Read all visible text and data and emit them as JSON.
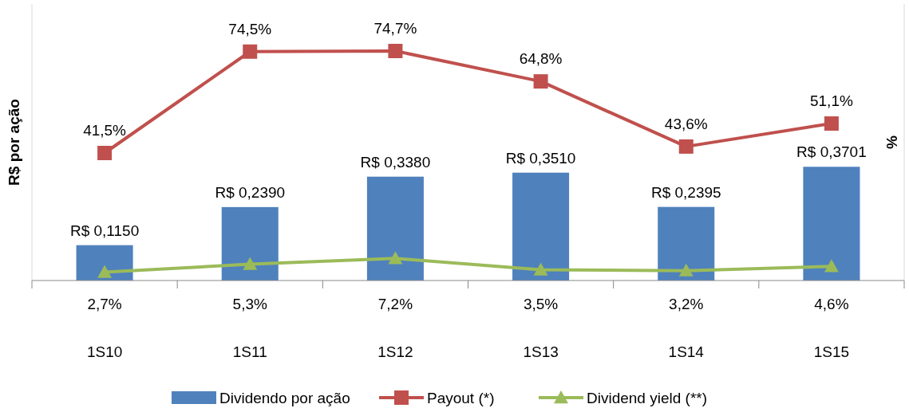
{
  "chart_data": {
    "type": "bar",
    "ylabel": "R$ por ação",
    "y2label": "%",
    "categories": [
      "1S10",
      "1S11",
      "1S12",
      "1S13",
      "1S14",
      "1S15"
    ],
    "ylim": [
      0,
      0.9
    ],
    "y2lim": [
      0,
      90
    ],
    "legend": "bottom",
    "series": [
      {
        "name": "Dividendo por ação",
        "type": "bar",
        "color": "#4f81bd",
        "values": [
          0.115,
          0.239,
          0.338,
          0.351,
          0.2395,
          0.3701
        ],
        "value_labels": [
          "R$ 0,1150",
          "R$ 0,2390",
          "R$ 0,3380",
          "R$ 0,3510",
          "R$ 0,2395",
          "R$ 0,3701"
        ]
      },
      {
        "name": "Payout (*)",
        "type": "line",
        "axis": "y2",
        "marker": "square",
        "color": "#c0504d",
        "values": [
          41.5,
          74.5,
          74.7,
          64.8,
          43.6,
          51.1
        ],
        "value_labels": [
          "41,5%",
          "74,5%",
          "74,7%",
          "64,8%",
          "43,6%",
          "51,1%"
        ]
      },
      {
        "name": "Dividend yield (**)",
        "type": "line",
        "axis": "y2",
        "marker": "triangle",
        "color": "#9bbb59",
        "values": [
          2.7,
          5.3,
          7.2,
          3.5,
          3.2,
          4.6
        ],
        "value_labels": [
          "2,7%",
          "5,3%",
          "7,2%",
          "3,5%",
          "3,2%",
          "4,6%"
        ]
      }
    ]
  }
}
